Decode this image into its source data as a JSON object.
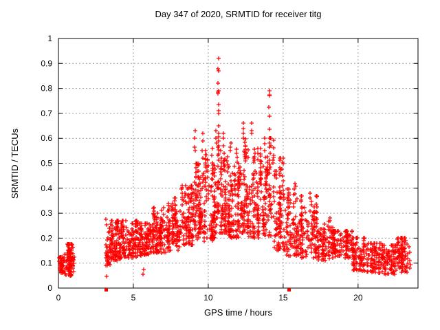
{
  "chart_data": {
    "type": "scatter",
    "title": "Day 347 of 2020, SRMTID for receiver titg",
    "xlabel": "GPS time / hours",
    "ylabel": "SRMTID / TECUs",
    "xlim": [
      0,
      24
    ],
    "ylim": [
      0,
      1
    ],
    "grid": "dotted both axes",
    "legend": "none",
    "xticks": [
      {
        "v": 0,
        "label": "0"
      },
      {
        "v": 5,
        "label": "5"
      },
      {
        "v": 10,
        "label": "10"
      },
      {
        "v": 15,
        "label": "15"
      },
      {
        "v": 20,
        "label": "20"
      }
    ],
    "yticks": [
      {
        "v": 0.0,
        "label": "0"
      },
      {
        "v": 0.1,
        "label": "0.1"
      },
      {
        "v": 0.2,
        "label": "0.2"
      },
      {
        "v": 0.3,
        "label": "0.3"
      },
      {
        "v": 0.4,
        "label": "0.4"
      },
      {
        "v": 0.5,
        "label": "0.5"
      },
      {
        "v": 0.6,
        "label": "0.6"
      },
      {
        "v": 0.7,
        "label": "0.7"
      },
      {
        "v": 0.8,
        "label": "0.8"
      },
      {
        "v": 0.9,
        "label": "0.9"
      },
      {
        "v": 1.0,
        "label": "1"
      }
    ],
    "marker": {
      "glyph": "plus",
      "color": "#ff0000",
      "size": 7
    },
    "zero_marker": {
      "glyph": "filled-square",
      "color": "#ff0000",
      "size": 5
    },
    "colors": {
      "frame": "#000000",
      "grid": "#9a9a9a",
      "background": "#ffffff"
    },
    "clusters": [
      {
        "x0": 0.02,
        "x1": 0.35,
        "ylo": 0.06,
        "yhi": 0.125,
        "n": 40
      },
      {
        "x0": 0.35,
        "x1": 1.05,
        "ylo": 0.05,
        "yhi": 0.14,
        "n": 75
      },
      {
        "x0": 0.6,
        "x1": 1.0,
        "ylo": 0.09,
        "yhi": 0.175,
        "n": 45
      },
      {
        "x0": 3.15,
        "x1": 3.45,
        "ylo": 0.09,
        "yhi": 0.29,
        "n": 45
      },
      {
        "x0": 3.4,
        "x1": 4.2,
        "ylo": 0.11,
        "yhi": 0.27,
        "n": 115
      },
      {
        "x0": 4.2,
        "x1": 5.2,
        "ylo": 0.12,
        "yhi": 0.27,
        "n": 120
      },
      {
        "x0": 5.2,
        "x1": 6.3,
        "ylo": 0.13,
        "yhi": 0.26,
        "n": 120
      },
      {
        "x0": 6.3,
        "x1": 7.2,
        "ylo": 0.14,
        "yhi": 0.33,
        "n": 110
      },
      {
        "x0": 7.2,
        "x1": 8.2,
        "ylo": 0.15,
        "yhi": 0.36,
        "n": 120
      },
      {
        "x0": 8.2,
        "x1": 9.0,
        "ylo": 0.17,
        "yhi": 0.41,
        "n": 110
      },
      {
        "x0": 9.0,
        "x1": 9.8,
        "ylo": 0.18,
        "yhi": 0.5,
        "n": 115
      },
      {
        "x0": 9.8,
        "x1": 10.5,
        "ylo": 0.19,
        "yhi": 0.56,
        "n": 105
      },
      {
        "x0": 10.5,
        "x1": 11.3,
        "ylo": 0.22,
        "yhi": 0.6,
        "n": 110
      },
      {
        "x0": 11.3,
        "x1": 12.0,
        "ylo": 0.2,
        "yhi": 0.56,
        "n": 100
      },
      {
        "x0": 12.0,
        "x1": 12.7,
        "ylo": 0.22,
        "yhi": 0.62,
        "n": 105
      },
      {
        "x0": 12.7,
        "x1": 13.6,
        "ylo": 0.2,
        "yhi": 0.58,
        "n": 110
      },
      {
        "x0": 13.6,
        "x1": 14.4,
        "ylo": 0.21,
        "yhi": 0.6,
        "n": 100
      },
      {
        "x0": 14.4,
        "x1": 15.2,
        "ylo": 0.15,
        "yhi": 0.52,
        "n": 100
      },
      {
        "x0": 15.2,
        "x1": 16.2,
        "ylo": 0.13,
        "yhi": 0.42,
        "n": 110
      },
      {
        "x0": 16.2,
        "x1": 17.3,
        "ylo": 0.12,
        "yhi": 0.37,
        "n": 110
      },
      {
        "x0": 17.3,
        "x1": 18.3,
        "ylo": 0.11,
        "yhi": 0.28,
        "n": 100
      },
      {
        "x0": 18.3,
        "x1": 19.6,
        "ylo": 0.12,
        "yhi": 0.23,
        "n": 110
      },
      {
        "x0": 19.6,
        "x1": 20.6,
        "ylo": 0.07,
        "yhi": 0.2,
        "n": 95
      },
      {
        "x0": 20.6,
        "x1": 21.6,
        "ylo": 0.06,
        "yhi": 0.18,
        "n": 95
      },
      {
        "x0": 21.6,
        "x1": 22.6,
        "ylo": 0.055,
        "yhi": 0.17,
        "n": 95
      },
      {
        "x0": 22.6,
        "x1": 23.5,
        "ylo": 0.06,
        "yhi": 0.2,
        "n": 95
      }
    ],
    "spikes": [
      {
        "x": 10.67,
        "ys": [
          0.92,
          0.88,
          0.87,
          0.82,
          0.79,
          0.785,
          0.78,
          0.735,
          0.71,
          0.7,
          0.65,
          0.62,
          0.605,
          0.57,
          0.555
        ]
      },
      {
        "x": 10.52,
        "ys": [
          0.63,
          0.6,
          0.58
        ]
      },
      {
        "x": 14.08,
        "ys": [
          0.79,
          0.775,
          0.77,
          0.725,
          0.69,
          0.635,
          0.6,
          0.58,
          0.565
        ]
      },
      {
        "x": 9.12,
        "ys": [
          0.63,
          0.6,
          0.565,
          0.55
        ]
      },
      {
        "x": 9.62,
        "ys": [
          0.62,
          0.59,
          0.55,
          0.52
        ]
      },
      {
        "x": 12.35,
        "ys": [
          0.66,
          0.64,
          0.62,
          0.6
        ]
      },
      {
        "x": 12.9,
        "ys": [
          0.66,
          0.63,
          0.62
        ]
      },
      {
        "x": 11.0,
        "ys": [
          0.62,
          0.6,
          0.57
        ]
      },
      {
        "x": 11.5,
        "ys": [
          0.58,
          0.565,
          0.55
        ]
      },
      {
        "x": 13.3,
        "ys": [
          0.56,
          0.54
        ]
      },
      {
        "x": 15.0,
        "ys": [
          0.52,
          0.5
        ]
      },
      {
        "x": 16.8,
        "ys": [
          0.38,
          0.36
        ]
      }
    ],
    "outliers": [
      [
        3.2,
        0.047
      ],
      [
        5.65,
        0.055
      ],
      [
        5.67,
        0.075
      ]
    ],
    "zero_markers": [
      [
        3.17,
        0.0
      ],
      [
        15.35,
        0.0
      ]
    ]
  }
}
